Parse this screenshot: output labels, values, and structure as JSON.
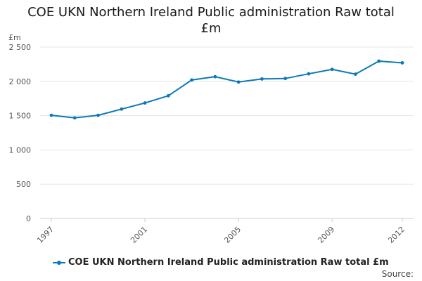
{
  "chart_data": {
    "type": "line",
    "title_line1": "COE UKN Northern Ireland Public administration Raw total",
    "title_line2": "£m",
    "ylabel": "£m",
    "xlabel": "",
    "x": [
      1997,
      1998,
      1999,
      2000,
      2001,
      2002,
      2003,
      2004,
      2005,
      2006,
      2007,
      2008,
      2009,
      2010,
      2011,
      2012
    ],
    "x_tick_labels": [
      "1997",
      "2001",
      "2005",
      "2009",
      "2012"
    ],
    "x_tick_values": [
      1997,
      2001,
      2005,
      2009,
      2012
    ],
    "y_tick_labels": [
      "0",
      "500",
      "1 000",
      "1 500",
      "2 000",
      "2 500"
    ],
    "y_tick_values": [
      0,
      500,
      1000,
      1500,
      2000,
      2500
    ],
    "ylim": [
      0,
      2500
    ],
    "grid": true,
    "series": [
      {
        "name": "COE UKN Northern Ireland Public administration Raw total £m",
        "color": "#0b79b7",
        "values": [
          1505,
          1468,
          1505,
          1595,
          1685,
          1790,
          2020,
          2068,
          1990,
          2035,
          2042,
          2110,
          2175,
          2105,
          2295,
          2270
        ]
      }
    ],
    "legend_label": "COE UKN Northern Ireland Public administration Raw total £m",
    "legend_position": "bottom",
    "source_label": "Source:"
  }
}
